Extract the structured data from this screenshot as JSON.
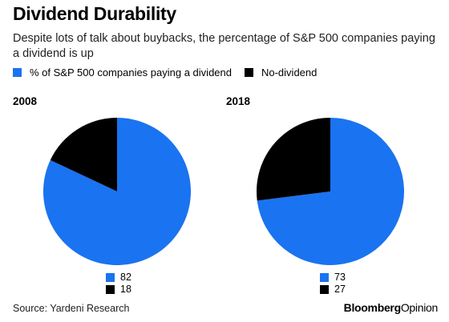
{
  "header": {
    "title": "Dividend Durability",
    "subtitle": "Despite lots of talk about buybacks, the percentage of S&P 500 companies paying a dividend is up"
  },
  "legend": [
    {
      "label": "% of S&P 500 companies paying a dividend",
      "color": "#1a73f0"
    },
    {
      "label": "No-dividend",
      "color": "#000000"
    }
  ],
  "chart_data": [
    {
      "type": "pie",
      "title": "2008",
      "labels": [
        "% of S&P 500 companies paying a dividend",
        "No-dividend"
      ],
      "values": [
        82,
        18
      ],
      "colors": [
        "#1a73f0",
        "#000000"
      ]
    },
    {
      "type": "pie",
      "title": "2018",
      "labels": [
        "% of S&P 500 companies paying a dividend",
        "No-dividend"
      ],
      "values": [
        73,
        27
      ],
      "colors": [
        "#1a73f0",
        "#000000"
      ]
    }
  ],
  "footer": {
    "source": "Source: Yardeni Research",
    "brand_bold": "Bloomberg",
    "brand_regular": "Opinion"
  }
}
